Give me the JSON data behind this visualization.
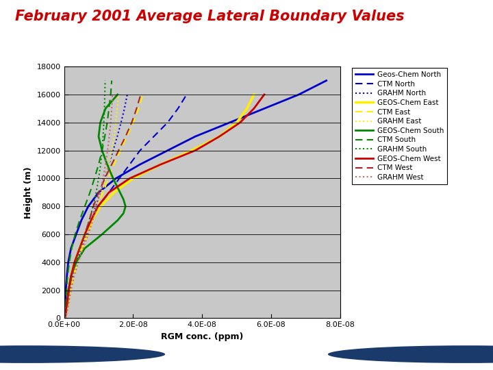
{
  "title": "February 2001 Average Lateral Boundary Values",
  "xlabel": "RGM conc. (ppm)",
  "ylabel": "Height (m)",
  "xlim": [
    0,
    8e-08
  ],
  "ylim": [
    0,
    18000
  ],
  "yticks": [
    0,
    2000,
    4000,
    6000,
    8000,
    10000,
    12000,
    14000,
    16000,
    18000
  ],
  "xticks": [
    0.0,
    2e-08,
    4e-08,
    6e-08,
    8e-08
  ],
  "bg_color": "#c8c8c8",
  "title_color": "#cc0000",
  "footer_bg": "#5b8fc9",
  "legend_entries": [
    {
      "label": "Geos-Chem North",
      "color": "#0000cc",
      "ls": "-",
      "lw": 2.0
    },
    {
      "label": "CTM North",
      "color": "#0000cc",
      "ls": "--",
      "lw": 1.5
    },
    {
      "label": "GRAHM North",
      "color": "#0000cc",
      "ls": ":",
      "lw": 1.5
    },
    {
      "label": "GEOS-Chem East",
      "color": "#ffee00",
      "ls": "-",
      "lw": 2.5
    },
    {
      "label": "CTM East",
      "color": "#ffee00",
      "ls": "--",
      "lw": 1.5
    },
    {
      "label": "GRAHM East",
      "color": "#ffee00",
      "ls": ":",
      "lw": 1.5
    },
    {
      "label": "GEOS-Chem South",
      "color": "#008800",
      "ls": "-",
      "lw": 2.0
    },
    {
      "label": "CTM South",
      "color": "#008800",
      "ls": "--",
      "lw": 1.5
    },
    {
      "label": "GRAHM South",
      "color": "#008800",
      "ls": ":",
      "lw": 1.5
    },
    {
      "label": "GEOS-Chem West",
      "color": "#cc0000",
      "ls": "-",
      "lw": 2.0
    },
    {
      "label": "CTM West",
      "color": "#aa2222",
      "ls": "--",
      "lw": 1.5
    },
    {
      "label": "GRAHM West",
      "color": "#cc6666",
      "ls": ":",
      "lw": 1.5
    }
  ],
  "curves": {
    "geos_chem_north": {
      "heights": [
        0,
        200,
        500,
        1000,
        1500,
        2000,
        3000,
        4000,
        5000,
        6000,
        7000,
        8000,
        9000,
        10000,
        11000,
        12000,
        13000,
        14000,
        15000,
        16000,
        17000
      ],
      "conc": [
        5e-11,
        8e-11,
        1.5e-10,
        3e-10,
        4e-10,
        5e-10,
        8e-10,
        1.2e-09,
        2e-09,
        3.5e-09,
        5e-09,
        7e-09,
        1e-08,
        1.5e-08,
        2.2e-08,
        3e-08,
        3.8e-08,
        4.8e-08,
        5.8e-08,
        6.8e-08,
        7.6e-08
      ]
    },
    "ctm_north": {
      "heights": [
        0,
        200,
        500,
        1000,
        2000,
        3000,
        4000,
        5000,
        6000,
        7000,
        8000,
        9000,
        10000,
        11000,
        12000,
        13000,
        14000,
        15000,
        16000
      ],
      "conc": [
        2e-10,
        3e-10,
        5e-10,
        8e-10,
        1.2e-09,
        2e-09,
        3e-09,
        4.5e-09,
        6e-09,
        8e-09,
        1e-08,
        1.3e-08,
        1.6e-08,
        1.9e-08,
        2.2e-08,
        2.6e-08,
        3e-08,
        3.3e-08,
        3.55e-08
      ]
    },
    "grahm_north": {
      "heights": [
        0,
        200,
        500,
        1000,
        2000,
        3000,
        4000,
        5000,
        6000,
        7000,
        8000,
        9000,
        10000,
        11000,
        12000,
        13000,
        14000,
        15000,
        16000
      ],
      "conc": [
        3e-10,
        5e-10,
        8e-10,
        1.2e-09,
        1.8e-09,
        2.5e-09,
        3.5e-09,
        5e-09,
        6.5e-09,
        8e-09,
        9.2e-09,
        1.05e-08,
        1.18e-08,
        1.3e-08,
        1.42e-08,
        1.54e-08,
        1.65e-08,
        1.75e-08,
        1.83e-08
      ]
    },
    "geos_chem_east": {
      "heights": [
        0,
        200,
        500,
        1000,
        2000,
        3000,
        4000,
        5000,
        6000,
        7000,
        8000,
        9000,
        10000,
        11000,
        12000,
        13000,
        14000,
        15000,
        16000
      ],
      "conc": [
        2e-10,
        3e-10,
        5e-10,
        8e-10,
        1.3e-09,
        2e-09,
        3e-09,
        4.5e-09,
        6e-09,
        8e-09,
        1.05e-08,
        1.45e-08,
        2e-08,
        2.8e-08,
        3.7e-08,
        4.5e-08,
        5e-08,
        5.3e-08,
        5.5e-08
      ]
    },
    "ctm_east": {
      "heights": [
        0,
        200,
        500,
        1000,
        2000,
        3000,
        4000,
        5000,
        6000,
        7000,
        8000,
        9000,
        10000,
        11000,
        12000,
        13000,
        14000,
        15000,
        16000
      ],
      "conc": [
        3e-10,
        5e-10,
        8e-10,
        1.2e-09,
        1.8e-09,
        2.7e-09,
        3.8e-09,
        5.2e-09,
        6.8e-09,
        8.3e-09,
        9.8e-09,
        1.13e-08,
        1.28e-08,
        1.45e-08,
        1.63e-08,
        1.82e-08,
        2e-08,
        2.16e-08,
        2.28e-08
      ]
    },
    "grahm_east": {
      "heights": [
        0,
        200,
        500,
        1000,
        2000,
        3000,
        4000,
        5000,
        6000,
        7000,
        8000,
        9000,
        10000,
        11000,
        12000,
        13000,
        14000,
        15000,
        16000
      ],
      "conc": [
        4e-10,
        6e-10,
        9e-10,
        1.3e-09,
        2e-09,
        2.9e-09,
        4e-09,
        5.5e-09,
        7e-09,
        8.4e-09,
        9.7e-09,
        1.09e-08,
        1.2e-08,
        1.3e-08,
        1.38e-08,
        1.45e-08,
        1.5e-08,
        1.54e-08,
        1.57e-08
      ]
    },
    "geos_chem_south": {
      "heights": [
        0,
        200,
        500,
        1000,
        2000,
        3000,
        4000,
        5000,
        6000,
        7000,
        7500,
        8000,
        8500,
        9000,
        10000,
        11000,
        12000,
        13000,
        14000,
        15000,
        16000
      ],
      "conc": [
        2e-10,
        3e-10,
        5e-10,
        8e-10,
        1.3e-09,
        2e-09,
        3.5e-09,
        6e-09,
        1.1e-08,
        1.55e-08,
        1.72e-08,
        1.78e-08,
        1.72e-08,
        1.62e-08,
        1.42e-08,
        1.25e-08,
        1.1e-08,
        1e-08,
        1.05e-08,
        1.2e-08,
        1.55e-08
      ]
    },
    "ctm_south": {
      "heights": [
        0,
        200,
        500,
        1000,
        2000,
        3000,
        4000,
        5000,
        6000,
        7000,
        8000,
        9000,
        10000,
        11000,
        12000,
        13000,
        14000,
        15000,
        16000,
        17000
      ],
      "conc": [
        1.5e-10,
        2e-10,
        3e-10,
        5e-10,
        7e-10,
        1e-09,
        1.5e-09,
        2.2e-09,
        3.2e-09,
        4.5e-09,
        6e-09,
        7.5e-09,
        8.8e-09,
        1e-08,
        1.1e-08,
        1.18e-08,
        1.25e-08,
        1.3e-08,
        1.35e-08,
        1.38e-08
      ]
    },
    "grahm_south": {
      "heights": [
        0,
        200,
        500,
        1000,
        2000,
        3000,
        4000,
        5000,
        6000,
        7000,
        8000,
        9000,
        10000,
        11000,
        12000,
        13000,
        14000,
        15000,
        16000,
        17000
      ],
      "conc": [
        3e-10,
        5e-10,
        7e-10,
        1e-09,
        1.5e-09,
        2.2e-09,
        3.2e-09,
        4.5e-09,
        6e-09,
        7.3e-09,
        8.4e-09,
        9.3e-09,
        1e-08,
        1.06e-08,
        1.1e-08,
        1.13e-08,
        1.15e-08,
        1.17e-08,
        1.18e-08,
        1.19e-08
      ]
    },
    "geos_chem_west": {
      "heights": [
        0,
        200,
        500,
        1000,
        2000,
        3000,
        4000,
        5000,
        6000,
        7000,
        8000,
        9000,
        10000,
        11000,
        12000,
        13000,
        14000,
        15000,
        16000
      ],
      "conc": [
        2e-10,
        3e-10,
        5e-10,
        8e-10,
        1.3e-09,
        2e-09,
        3e-09,
        4.5e-09,
        6e-09,
        7.8e-09,
        9.8e-09,
        1.3e-08,
        1.9e-08,
        2.8e-08,
        3.8e-08,
        4.5e-08,
        5.1e-08,
        5.5e-08,
        5.8e-08
      ]
    },
    "ctm_west": {
      "heights": [
        0,
        200,
        500,
        1000,
        2000,
        3000,
        4000,
        5000,
        6000,
        7000,
        8000,
        9000,
        10000,
        11000,
        12000,
        13000,
        14000,
        15000,
        16000
      ],
      "conc": [
        3e-10,
        5e-10,
        7e-10,
        1e-09,
        1.5e-09,
        2.2e-09,
        3.2e-09,
        4.5e-09,
        6e-09,
        7.3e-09,
        8.5e-09,
        1e-08,
        1.18e-08,
        1.38e-08,
        1.58e-08,
        1.78e-08,
        1.96e-08,
        2.1e-08,
        2.22e-08
      ]
    },
    "grahm_west": {
      "heights": [
        0,
        200,
        500,
        1000,
        2000,
        3000,
        4000,
        5000,
        6000,
        7000,
        8000,
        9000,
        10000,
        11000,
        12000,
        13000,
        14000,
        15000,
        16000
      ],
      "conc": [
        4e-10,
        6e-10,
        9e-10,
        1.3e-09,
        2e-09,
        2.9e-09,
        4.1e-09,
        5.5e-09,
        7e-09,
        8.3e-09,
        9.4e-09,
        1.04e-08,
        1.13e-08,
        1.2e-08,
        1.26e-08,
        1.31e-08,
        1.35e-08,
        1.38e-08,
        1.4e-08
      ]
    }
  }
}
